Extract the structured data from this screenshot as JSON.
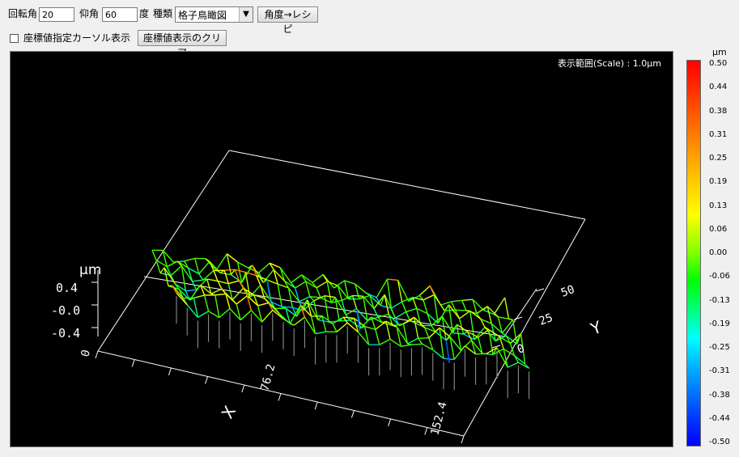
{
  "toolbar": {
    "rotation_label": "回転角",
    "rotation_value": "20",
    "elevation_label": "仰角",
    "elevation_value": "60",
    "degree_label": "度",
    "type_label": "種類",
    "type_value": "格子鳥瞰図",
    "recipe_button": "角度→レシピ"
  },
  "row2": {
    "cursor_checkbox_label": "座標値指定カーソル表示",
    "clear_button": "座標値表示のクリア"
  },
  "plot": {
    "scale_text": "表示範囲(Scale) :     1.0μm",
    "z_unit": "μm",
    "z_ticks": [
      "0.4",
      "-0.0",
      "-0.4"
    ],
    "x_tick_start": "0",
    "x_tick_mid": "76.2",
    "x_tick_end": "152.4",
    "x_axis_label": "X",
    "y_ticks": [
      "0",
      "25",
      "50"
    ],
    "y_axis_label": "Y"
  },
  "legend": {
    "unit": "μm",
    "ticks": [
      "0.50",
      "0.44",
      "0.38",
      "0.31",
      "0.25",
      "0.19",
      "0.13",
      "0.06",
      "0.00",
      "-0.06",
      "-0.13",
      "-0.19",
      "-0.25",
      "-0.31",
      "-0.38",
      "-0.44",
      "-0.50"
    ]
  },
  "colors": {
    "plot_bg": "#000000",
    "axis": "#ffffff",
    "surface_main": "#80ff00"
  }
}
